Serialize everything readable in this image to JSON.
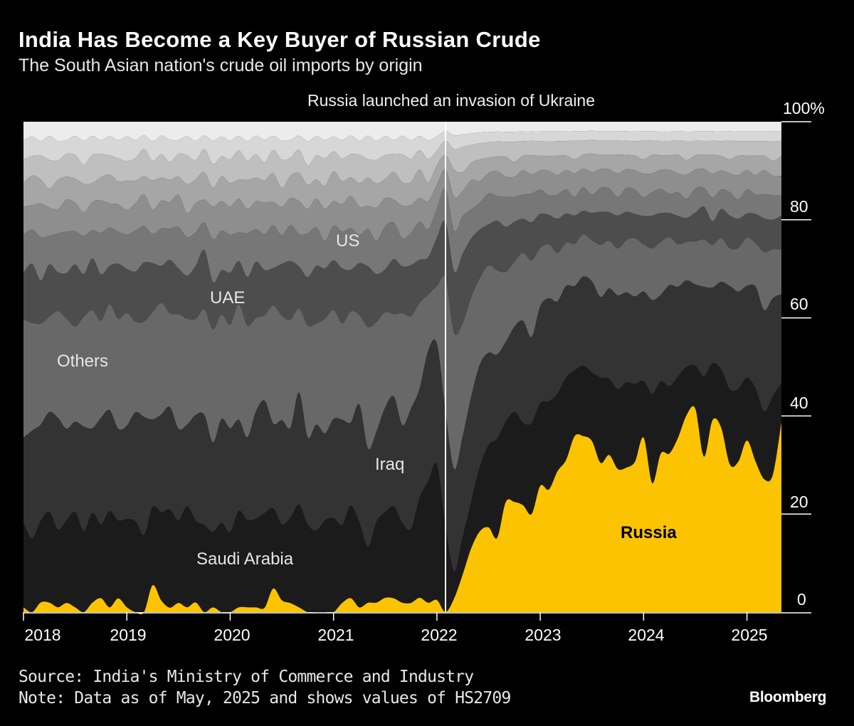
{
  "header": {
    "title": "India Has Become a Key Buyer of Russian Crude",
    "subtitle": "The South Asian nation's crude oil imports by origin"
  },
  "chart_data": {
    "type": "area",
    "stacking": "percent",
    "title": "India Has Become a Key Buyer of Russian Crude",
    "x_start": "2018-01",
    "x_end": "2025-05",
    "x_step": "month",
    "x_ticks": [
      "2018",
      "2019",
      "2020",
      "2021",
      "2022",
      "2023",
      "2024",
      "2025"
    ],
    "y_ticks": [
      "0",
      "20",
      "40",
      "60",
      "80",
      "100%"
    ],
    "ylim": [
      0,
      100
    ],
    "ylabel": "",
    "xlabel": "",
    "annotation": {
      "text": "Russia launched an invasion of Ukraine",
      "x": "2022-02"
    },
    "series": [
      {
        "name": "Russia",
        "color": "#fcc400",
        "values": [
          1,
          0,
          2,
          2,
          1,
          2,
          1,
          0,
          2,
          3,
          1,
          3,
          1,
          0,
          0,
          5.5,
          2.5,
          1,
          2,
          1,
          2,
          0,
          1,
          0,
          0,
          1,
          1,
          1,
          1,
          5,
          2.5,
          2,
          1,
          0,
          0,
          0,
          0,
          2,
          3,
          1,
          2,
          2,
          3,
          3,
          2,
          2,
          3,
          2,
          2.5,
          0,
          2,
          6,
          11,
          15,
          16.5,
          15,
          22,
          22,
          22,
          20.5,
          26,
          25,
          29,
          31.5,
          37.5,
          37.5,
          37.5,
          31.5,
          33,
          30.5,
          30.5,
          31,
          37,
          27.5,
          33,
          33,
          37,
          41,
          42.5,
          33,
          40.5,
          38,
          31.5,
          31,
          35.5,
          31,
          27.5,
          28,
          38.5
        ]
      },
      {
        "name": "Saudi Arabia",
        "color": "#1b1b1b",
        "values": [
          18,
          15,
          17,
          19,
          16,
          18,
          20,
          17,
          19,
          16,
          20,
          17,
          18,
          20,
          17,
          16,
          19,
          22,
          18,
          21,
          17,
          19,
          16,
          18,
          17,
          20,
          18,
          19,
          21,
          17,
          16,
          19,
          22,
          18,
          17,
          20,
          19,
          17,
          20,
          18,
          12,
          17,
          18,
          20,
          17,
          16,
          21,
          26,
          28,
          18,
          4,
          6,
          8,
          12,
          16,
          20,
          16,
          18,
          17,
          19,
          17,
          18,
          16,
          17,
          14,
          15,
          15,
          18,
          16,
          17,
          18,
          16,
          12,
          19,
          15,
          14,
          13,
          10,
          9,
          17,
          12,
          12,
          16,
          15,
          13,
          15,
          14,
          16,
          8
        ]
      },
      {
        "name": "Iraq",
        "color": "#333333",
        "values": [
          18,
          22,
          20,
          21,
          23,
          20,
          19,
          22,
          18,
          23,
          21,
          20,
          19,
          24,
          26,
          18,
          21,
          23,
          20,
          17,
          22,
          24,
          19,
          21,
          22,
          19,
          17,
          23,
          25,
          18,
          22,
          20,
          24,
          18,
          22,
          19,
          20,
          23,
          18,
          25,
          21,
          19,
          22,
          24,
          21,
          26,
          23,
          28,
          25,
          24,
          15,
          16,
          18,
          19,
          18,
          17,
          16,
          17,
          21,
          18,
          20,
          21,
          19,
          19,
          18,
          19,
          20,
          17,
          19,
          20,
          19,
          18,
          19,
          20,
          18,
          21,
          19,
          18,
          17,
          19,
          16,
          18,
          22,
          20,
          19,
          21,
          21,
          20,
          18
        ]
      },
      {
        "name": "Others",
        "color": "#686868",
        "values": [
          25,
          22,
          21,
          20,
          22,
          24,
          20,
          23,
          25,
          21,
          22,
          24,
          23,
          20,
          21,
          22,
          24,
          21,
          25,
          22,
          20,
          23,
          24,
          21,
          22,
          24,
          23,
          20,
          19,
          25,
          22,
          24,
          18,
          23,
          21,
          25,
          22,
          21,
          24,
          19,
          26,
          23,
          20,
          18,
          24,
          20,
          18,
          12,
          12,
          28,
          20,
          18,
          17,
          16,
          17,
          17,
          14,
          13,
          14,
          16,
          12,
          11,
          10,
          9,
          9,
          9,
          9,
          11,
          10,
          10,
          11,
          12,
          10,
          11,
          11,
          10,
          9,
          8,
          9,
          10,
          9,
          9,
          8,
          9,
          10,
          9,
          12,
          10,
          9
        ]
      },
      {
        "name": "UAE",
        "color": "#4d4d4d",
        "values": [
          10,
          12,
          9,
          11,
          8,
          10,
          13,
          9,
          11,
          10,
          8,
          12,
          9,
          11,
          13,
          10,
          8,
          12,
          10,
          9,
          11,
          13,
          10,
          9,
          11,
          9,
          10,
          12,
          10,
          8,
          11,
          13,
          9,
          10,
          12,
          11,
          10,
          12,
          9,
          11,
          13,
          10,
          9,
          12,
          10,
          11,
          9,
          8,
          10,
          12,
          9,
          11,
          10,
          9,
          8,
          10,
          9,
          8,
          7,
          8,
          7,
          6,
          7,
          6,
          6,
          5,
          6,
          7,
          6,
          7,
          6,
          5,
          6,
          7,
          6,
          5,
          6,
          5,
          6,
          7,
          5,
          6,
          7,
          6,
          5,
          6,
          7,
          6,
          7
        ]
      },
      {
        "name": "US",
        "color": "#777777",
        "values": [
          8,
          7,
          9,
          6,
          8,
          9,
          7,
          8,
          6,
          9,
          8,
          7,
          7,
          9,
          8,
          6,
          8,
          7,
          9,
          8,
          7,
          6,
          9,
          8,
          8,
          6,
          9,
          7,
          8,
          9,
          6,
          8,
          7,
          9,
          8,
          6,
          7,
          8,
          9,
          6,
          8,
          7,
          9,
          8,
          6,
          7,
          8,
          6,
          6,
          7,
          6,
          6,
          5,
          5,
          6,
          5,
          6,
          5,
          5,
          6,
          5,
          4,
          5,
          5,
          4,
          5,
          4,
          5,
          5,
          4,
          5,
          5,
          4,
          5,
          5,
          4,
          5,
          4,
          5,
          4,
          5,
          4,
          5,
          4,
          5,
          4,
          5,
          5,
          4
        ]
      },
      {
        "name": "",
        "color": "#8e8e8e",
        "values": [
          6,
          5,
          7,
          6,
          5,
          7,
          6,
          5,
          6,
          7,
          5,
          6,
          5,
          6,
          7,
          5,
          6,
          6,
          7,
          5,
          6,
          5,
          7,
          6,
          6,
          7,
          5,
          6,
          7,
          5,
          6,
          6,
          7,
          5,
          6,
          7,
          5,
          6,
          7,
          6,
          5,
          7,
          6,
          5,
          7,
          6,
          5,
          6,
          5,
          4,
          5,
          4,
          5,
          4,
          4,
          5,
          4,
          4,
          5,
          4,
          4,
          5,
          4,
          4,
          5,
          4,
          5,
          4,
          4,
          5,
          4,
          4,
          5,
          4,
          4,
          5,
          4,
          5,
          4,
          4,
          5,
          4,
          4,
          5,
          4,
          4,
          5,
          4,
          4
        ]
      },
      {
        "name": "",
        "color": "#a6a6a6",
        "values": [
          5,
          6,
          5,
          4,
          6,
          5,
          5,
          6,
          4,
          5,
          6,
          5,
          6,
          5,
          4,
          6,
          5,
          5,
          4,
          6,
          5,
          6,
          4,
          5,
          5,
          4,
          6,
          5,
          5,
          6,
          4,
          5,
          6,
          5,
          4,
          5,
          6,
          5,
          4,
          5,
          6,
          5,
          4,
          6,
          5,
          5,
          6,
          4,
          4,
          3,
          4,
          3,
          3,
          4,
          3,
          3,
          4,
          3,
          3,
          4,
          3,
          3,
          4,
          3,
          3,
          3,
          4,
          3,
          3,
          4,
          3,
          3,
          3,
          4,
          3,
          3,
          4,
          3,
          3,
          3,
          4,
          3,
          3,
          4,
          3,
          4,
          3,
          3,
          4
        ]
      },
      {
        "name": "",
        "color": "#bfbfbf",
        "values": [
          5,
          4,
          5,
          6,
          4,
          5,
          5,
          4,
          6,
          5,
          4,
          5,
          4,
          5,
          6,
          4,
          5,
          4,
          5,
          6,
          4,
          5,
          5,
          4,
          5,
          6,
          4,
          5,
          4,
          5,
          6,
          4,
          5,
          4,
          5,
          6,
          4,
          5,
          5,
          6,
          4,
          5,
          5,
          4,
          6,
          5,
          4,
          5,
          3,
          3,
          3,
          4,
          3,
          3,
          3,
          3,
          3,
          4,
          3,
          3,
          3,
          3,
          3,
          3,
          4,
          3,
          3,
          3,
          3,
          3,
          3,
          3,
          4,
          3,
          3,
          3,
          3,
          4,
          3,
          3,
          3,
          3,
          4,
          3,
          3,
          3,
          3,
          4,
          3
        ]
      },
      {
        "name": "",
        "color": "#d7d7d7",
        "values": [
          4,
          4,
          3,
          5,
          4,
          3,
          4,
          5,
          4,
          3,
          4,
          4,
          5,
          4,
          3,
          4,
          4,
          5,
          3,
          4,
          4,
          3,
          5,
          4,
          4,
          3,
          4,
          4,
          5,
          3,
          4,
          4,
          3,
          5,
          4,
          4,
          3,
          4,
          4,
          3,
          5,
          4,
          4,
          3,
          4,
          4,
          3,
          4,
          3,
          2,
          2,
          2,
          2,
          2,
          2,
          2,
          2,
          2,
          2,
          2,
          2,
          2,
          2,
          2,
          2,
          2,
          2,
          2,
          2,
          2,
          2,
          2,
          2,
          2,
          2,
          2,
          2,
          2,
          2,
          2,
          2,
          2,
          2,
          2,
          2,
          2,
          2,
          2,
          2
        ]
      },
      {
        "name": "",
        "color": "#ececec",
        "values": [
          4,
          3,
          4,
          3,
          4,
          4,
          3,
          4,
          3,
          4,
          3,
          4,
          3,
          4,
          3,
          4,
          3,
          4,
          4,
          3,
          4,
          3,
          4,
          3,
          4,
          3,
          4,
          3,
          4,
          3,
          4,
          4,
          3,
          4,
          3,
          4,
          3,
          4,
          3,
          4,
          3,
          4,
          3,
          4,
          3,
          4,
          3,
          4,
          3,
          2,
          2,
          2,
          2,
          2,
          2,
          2,
          2,
          2,
          2,
          2,
          2,
          2,
          2,
          2,
          2,
          2,
          2,
          2,
          2,
          2,
          2,
          2,
          2,
          2,
          2,
          2,
          2,
          2,
          2,
          2,
          2,
          2,
          2,
          2,
          2,
          2,
          2,
          2,
          2
        ]
      }
    ]
  },
  "footer": {
    "source": "Source: India's Ministry of Commerce and Industry",
    "note": "Note: Data as of May, 2025 and shows values of HS2709",
    "logo": "Bloomberg"
  }
}
